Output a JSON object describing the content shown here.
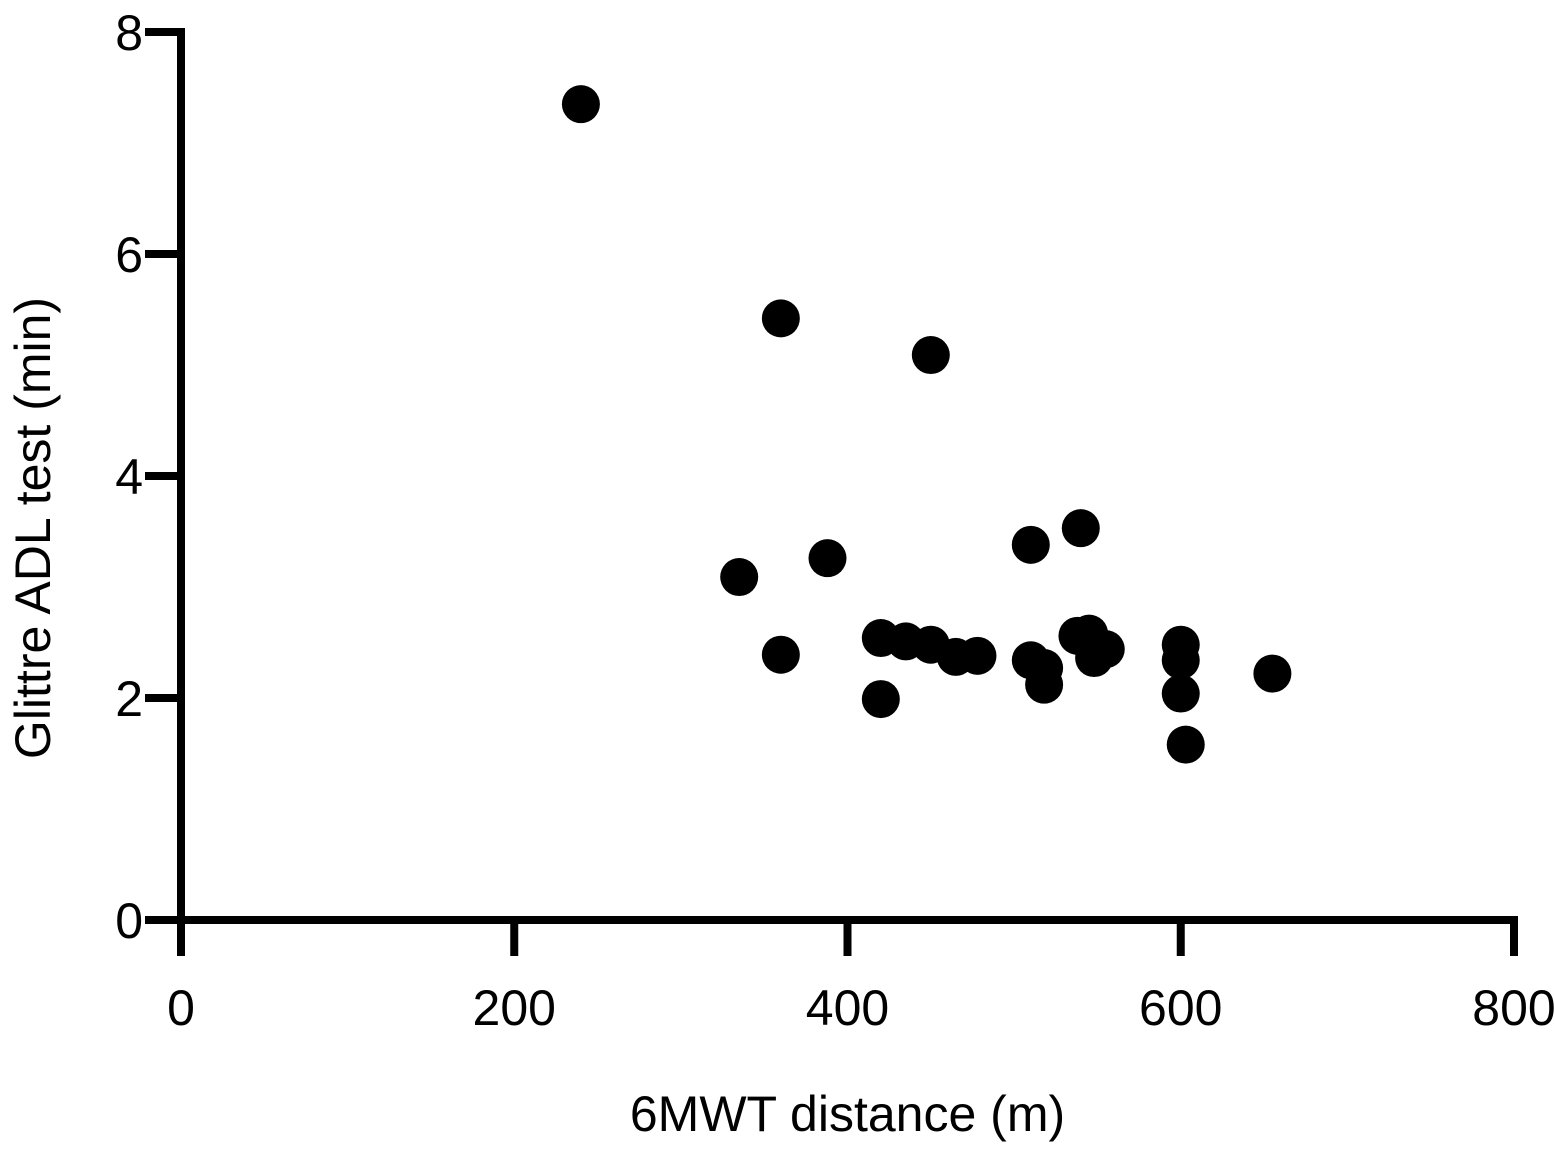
{
  "chart_data": {
    "type": "scatter",
    "title": "",
    "xlabel": "6MWT distance (m)",
    "ylabel": "Glittre ADL test (min)",
    "xlim": [
      0,
      800
    ],
    "ylim": [
      0,
      8
    ],
    "x_ticks": [
      0,
      200,
      400,
      600,
      800
    ],
    "y_ticks": [
      0,
      2,
      4,
      6,
      8
    ],
    "grid": false,
    "legend": "none",
    "marker_color": "#000000",
    "points": [
      {
        "x": 240,
        "y": 7.35
      },
      {
        "x": 360,
        "y": 5.42
      },
      {
        "x": 450,
        "y": 5.09
      },
      {
        "x": 335,
        "y": 3.09
      },
      {
        "x": 388,
        "y": 3.26
      },
      {
        "x": 360,
        "y": 2.39
      },
      {
        "x": 420,
        "y": 2.54
      },
      {
        "x": 435,
        "y": 2.51
      },
      {
        "x": 450,
        "y": 2.48
      },
      {
        "x": 465,
        "y": 2.37
      },
      {
        "x": 478,
        "y": 2.38
      },
      {
        "x": 420,
        "y": 1.99
      },
      {
        "x": 510,
        "y": 3.38
      },
      {
        "x": 540,
        "y": 3.53
      },
      {
        "x": 510,
        "y": 2.34
      },
      {
        "x": 518,
        "y": 2.27
      },
      {
        "x": 518,
        "y": 2.12
      },
      {
        "x": 538,
        "y": 2.56
      },
      {
        "x": 545,
        "y": 2.58
      },
      {
        "x": 548,
        "y": 2.36
      },
      {
        "x": 555,
        "y": 2.44
      },
      {
        "x": 600,
        "y": 2.48
      },
      {
        "x": 600,
        "y": 2.34
      },
      {
        "x": 600,
        "y": 2.04
      },
      {
        "x": 603,
        "y": 1.58
      },
      {
        "x": 655,
        "y": 2.22
      }
    ]
  }
}
